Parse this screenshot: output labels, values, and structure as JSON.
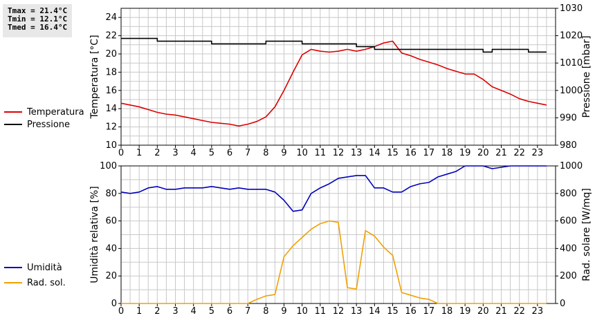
{
  "stats": {
    "tmax": "Tmax = 21.4°C",
    "tmin": "Tmin = 12.1°C",
    "tmed": "Tmed = 16.4°C"
  },
  "colors": {
    "temperature": "#dd0000",
    "pressure": "#000000",
    "humidity": "#0000bb",
    "radiation": "#f0a000",
    "grid": "#c8c8c8"
  },
  "chart_data": [
    {
      "type": "line",
      "xticks": [
        "0",
        "1",
        "2",
        "3",
        "4",
        "5",
        "6",
        "7",
        "8",
        "9",
        "10",
        "11",
        "12",
        "13",
        "14",
        "15",
        "16",
        "17",
        "18",
        "19",
        "20",
        "21",
        "22",
        "23"
      ],
      "xlim": [
        0,
        24
      ],
      "ylabel": "Temperatura [°C]",
      "ylim": [
        10,
        25
      ],
      "yticks": [
        "10",
        "12",
        "14",
        "16",
        "18",
        "20",
        "22",
        "24"
      ],
      "y2label": "Pressione [mbar]",
      "y2lim": [
        980,
        1030
      ],
      "y2ticks": [
        "980",
        "990",
        "1000",
        "1010",
        "1020",
        "1030"
      ],
      "legend_placement": "left",
      "series": [
        {
          "name": "Temperatura",
          "axis": "left",
          "x": [
            0,
            0.5,
            1,
            1.5,
            2,
            2.5,
            3,
            3.5,
            4,
            4.5,
            5,
            5.5,
            6,
            6.5,
            7,
            7.5,
            8,
            8.5,
            9,
            9.5,
            10,
            10.5,
            11,
            11.5,
            12,
            12.5,
            13,
            13.5,
            14,
            14.5,
            15,
            15.5,
            16,
            16.5,
            17,
            17.5,
            18,
            18.5,
            19,
            19.5,
            20,
            20.5,
            21,
            21.5,
            22,
            22.5,
            23,
            23.5
          ],
          "values": [
            14.6,
            14.4,
            14.2,
            13.9,
            13.6,
            13.4,
            13.3,
            13.1,
            12.9,
            12.7,
            12.5,
            12.4,
            12.3,
            12.1,
            12.3,
            12.6,
            13.1,
            14.2,
            16.0,
            18.0,
            19.9,
            20.5,
            20.3,
            20.2,
            20.3,
            20.5,
            20.3,
            20.5,
            20.8,
            21.2,
            21.4,
            20.1,
            19.8,
            19.4,
            19.1,
            18.8,
            18.4,
            18.1,
            17.8,
            17.8,
            17.2,
            16.4,
            16.0,
            15.6,
            15.1,
            14.8,
            14.6,
            14.4
          ]
        },
        {
          "name": "Pressione",
          "axis": "right",
          "x": [
            0,
            1.5,
            2,
            4.5,
            5,
            7.5,
            8,
            9.5,
            10,
            12.5,
            13,
            13.5,
            14,
            19.5,
            20,
            20.5,
            22,
            22.5,
            23.5
          ],
          "values": [
            1019,
            1019,
            1018,
            1018,
            1017,
            1017,
            1018,
            1018,
            1017,
            1017,
            1016,
            1016,
            1015,
            1015,
            1014,
            1015,
            1015,
            1014,
            1014
          ]
        }
      ]
    },
    {
      "type": "line",
      "xticks": [
        "0",
        "1",
        "2",
        "3",
        "4",
        "5",
        "6",
        "7",
        "8",
        "9",
        "10",
        "11",
        "12",
        "13",
        "14",
        "15",
        "16",
        "17",
        "18",
        "19",
        "20",
        "21",
        "22",
        "23"
      ],
      "xlim": [
        0,
        24
      ],
      "ylabel": "Umidità relativa [%]",
      "ylim": [
        0,
        100
      ],
      "yticks": [
        "0",
        "20",
        "40",
        "60",
        "80",
        "100"
      ],
      "y2label": "Rad. solare [W/mq]",
      "y2lim": [
        0,
        1000
      ],
      "y2ticks": [
        "0",
        "200",
        "400",
        "600",
        "800",
        "1000"
      ],
      "legend_placement": "left",
      "series": [
        {
          "name": "Umidità",
          "axis": "left",
          "x": [
            0,
            0.5,
            1,
            1.5,
            2,
            2.5,
            3,
            3.5,
            4,
            4.5,
            5,
            5.5,
            6,
            6.5,
            7,
            7.5,
            8,
            8.5,
            9,
            9.5,
            10,
            10.5,
            11,
            11.5,
            12,
            12.5,
            13,
            13.5,
            14,
            14.5,
            15,
            15.5,
            16,
            16.5,
            17,
            17.5,
            18,
            18.5,
            19,
            19.5,
            20,
            20.5,
            21,
            21.5,
            22,
            22.5,
            23,
            23.5
          ],
          "values": [
            81,
            80,
            81,
            84,
            85,
            83,
            83,
            84,
            84,
            84,
            85,
            84,
            83,
            84,
            83,
            83,
            83,
            81,
            75,
            67,
            68,
            80,
            84,
            87,
            91,
            92,
            93,
            93,
            84,
            84,
            81,
            81,
            85,
            87,
            88,
            92,
            94,
            96,
            100,
            100,
            100,
            98,
            99,
            100,
            100,
            100,
            100,
            100
          ]
        },
        {
          "name": "Rad. sol.",
          "axis": "right",
          "x": [
            0,
            1,
            2,
            3,
            4,
            5,
            6,
            7,
            7.5,
            8,
            8.5,
            9,
            9.5,
            10,
            10.5,
            11,
            11.5,
            12,
            12.5,
            13,
            13.5,
            14,
            14.5,
            15,
            15.5,
            16,
            16.5,
            17,
            17.5,
            18,
            19,
            20,
            21,
            22,
            23,
            23.5
          ],
          "values": [
            0,
            0,
            0,
            0,
            0,
            0,
            0,
            0,
            30,
            55,
            65,
            340,
            420,
            480,
            540,
            580,
            600,
            590,
            115,
            105,
            530,
            490,
            410,
            350,
            80,
            60,
            40,
            30,
            0,
            0,
            0,
            0,
            0,
            0,
            0,
            0
          ]
        }
      ]
    }
  ]
}
